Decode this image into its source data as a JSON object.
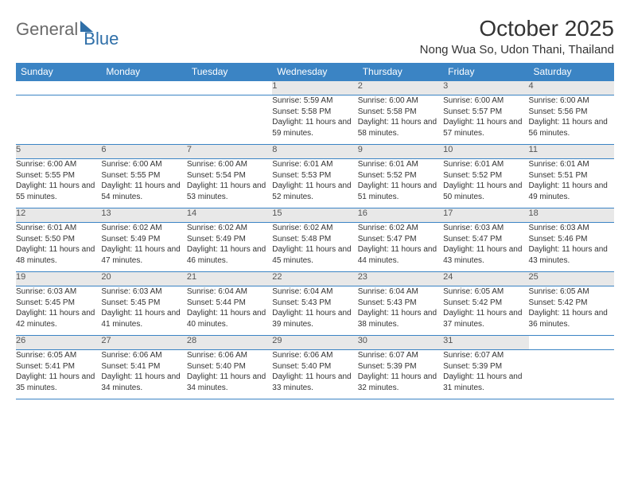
{
  "logo": {
    "text1": "General",
    "text2": "Blue"
  },
  "title": "October 2025",
  "location": "Nong Wua So, Udon Thani, Thailand",
  "colors": {
    "header_bg": "#3b84c4",
    "header_text": "#ffffff",
    "daynum_bg": "#e8e8e8",
    "border": "#3b84c4",
    "logo_gray": "#6a6a6a",
    "logo_blue": "#2f6fa8"
  },
  "weekdays": [
    "Sunday",
    "Monday",
    "Tuesday",
    "Wednesday",
    "Thursday",
    "Friday",
    "Saturday"
  ],
  "weeks": [
    [
      null,
      null,
      null,
      {
        "n": "1",
        "sunrise": "5:59 AM",
        "sunset": "5:58 PM",
        "daylight": "11 hours and 59 minutes."
      },
      {
        "n": "2",
        "sunrise": "6:00 AM",
        "sunset": "5:58 PM",
        "daylight": "11 hours and 58 minutes."
      },
      {
        "n": "3",
        "sunrise": "6:00 AM",
        "sunset": "5:57 PM",
        "daylight": "11 hours and 57 minutes."
      },
      {
        "n": "4",
        "sunrise": "6:00 AM",
        "sunset": "5:56 PM",
        "daylight": "11 hours and 56 minutes."
      }
    ],
    [
      {
        "n": "5",
        "sunrise": "6:00 AM",
        "sunset": "5:55 PM",
        "daylight": "11 hours and 55 minutes."
      },
      {
        "n": "6",
        "sunrise": "6:00 AM",
        "sunset": "5:55 PM",
        "daylight": "11 hours and 54 minutes."
      },
      {
        "n": "7",
        "sunrise": "6:00 AM",
        "sunset": "5:54 PM",
        "daylight": "11 hours and 53 minutes."
      },
      {
        "n": "8",
        "sunrise": "6:01 AM",
        "sunset": "5:53 PM",
        "daylight": "11 hours and 52 minutes."
      },
      {
        "n": "9",
        "sunrise": "6:01 AM",
        "sunset": "5:52 PM",
        "daylight": "11 hours and 51 minutes."
      },
      {
        "n": "10",
        "sunrise": "6:01 AM",
        "sunset": "5:52 PM",
        "daylight": "11 hours and 50 minutes."
      },
      {
        "n": "11",
        "sunrise": "6:01 AM",
        "sunset": "5:51 PM",
        "daylight": "11 hours and 49 minutes."
      }
    ],
    [
      {
        "n": "12",
        "sunrise": "6:01 AM",
        "sunset": "5:50 PM",
        "daylight": "11 hours and 48 minutes."
      },
      {
        "n": "13",
        "sunrise": "6:02 AM",
        "sunset": "5:49 PM",
        "daylight": "11 hours and 47 minutes."
      },
      {
        "n": "14",
        "sunrise": "6:02 AM",
        "sunset": "5:49 PM",
        "daylight": "11 hours and 46 minutes."
      },
      {
        "n": "15",
        "sunrise": "6:02 AM",
        "sunset": "5:48 PM",
        "daylight": "11 hours and 45 minutes."
      },
      {
        "n": "16",
        "sunrise": "6:02 AM",
        "sunset": "5:47 PM",
        "daylight": "11 hours and 44 minutes."
      },
      {
        "n": "17",
        "sunrise": "6:03 AM",
        "sunset": "5:47 PM",
        "daylight": "11 hours and 43 minutes."
      },
      {
        "n": "18",
        "sunrise": "6:03 AM",
        "sunset": "5:46 PM",
        "daylight": "11 hours and 43 minutes."
      }
    ],
    [
      {
        "n": "19",
        "sunrise": "6:03 AM",
        "sunset": "5:45 PM",
        "daylight": "11 hours and 42 minutes."
      },
      {
        "n": "20",
        "sunrise": "6:03 AM",
        "sunset": "5:45 PM",
        "daylight": "11 hours and 41 minutes."
      },
      {
        "n": "21",
        "sunrise": "6:04 AM",
        "sunset": "5:44 PM",
        "daylight": "11 hours and 40 minutes."
      },
      {
        "n": "22",
        "sunrise": "6:04 AM",
        "sunset": "5:43 PM",
        "daylight": "11 hours and 39 minutes."
      },
      {
        "n": "23",
        "sunrise": "6:04 AM",
        "sunset": "5:43 PM",
        "daylight": "11 hours and 38 minutes."
      },
      {
        "n": "24",
        "sunrise": "6:05 AM",
        "sunset": "5:42 PM",
        "daylight": "11 hours and 37 minutes."
      },
      {
        "n": "25",
        "sunrise": "6:05 AM",
        "sunset": "5:42 PM",
        "daylight": "11 hours and 36 minutes."
      }
    ],
    [
      {
        "n": "26",
        "sunrise": "6:05 AM",
        "sunset": "5:41 PM",
        "daylight": "11 hours and 35 minutes."
      },
      {
        "n": "27",
        "sunrise": "6:06 AM",
        "sunset": "5:41 PM",
        "daylight": "11 hours and 34 minutes."
      },
      {
        "n": "28",
        "sunrise": "6:06 AM",
        "sunset": "5:40 PM",
        "daylight": "11 hours and 34 minutes."
      },
      {
        "n": "29",
        "sunrise": "6:06 AM",
        "sunset": "5:40 PM",
        "daylight": "11 hours and 33 minutes."
      },
      {
        "n": "30",
        "sunrise": "6:07 AM",
        "sunset": "5:39 PM",
        "daylight": "11 hours and 32 minutes."
      },
      {
        "n": "31",
        "sunrise": "6:07 AM",
        "sunset": "5:39 PM",
        "daylight": "11 hours and 31 minutes."
      },
      null
    ]
  ],
  "labels": {
    "sunrise": "Sunrise:",
    "sunset": "Sunset:",
    "daylight": "Daylight:"
  }
}
